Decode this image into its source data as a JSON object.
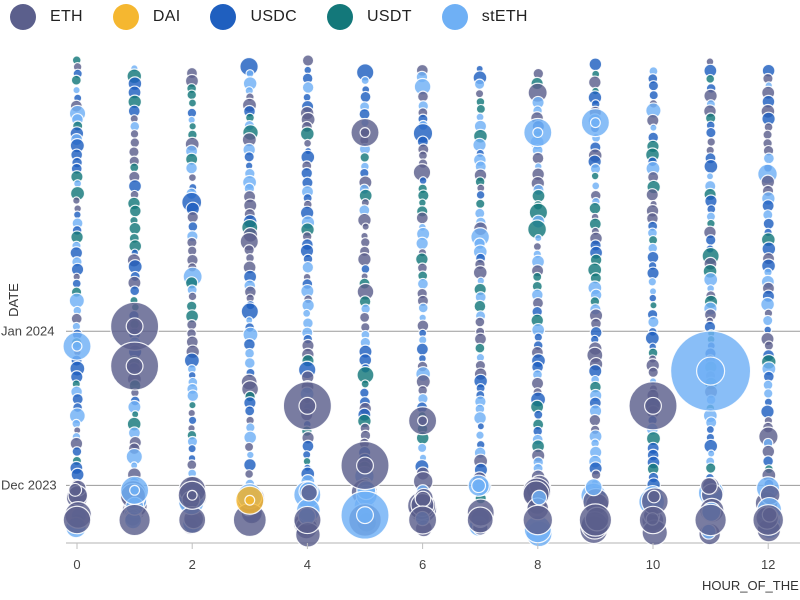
{
  "legend": [
    {
      "label": "ETH",
      "color": "#5b5f8c"
    },
    {
      "label": "DAI",
      "color": "#f5b730"
    },
    {
      "label": "USDC",
      "color": "#1f5fbf"
    },
    {
      "label": "USDT",
      "color": "#13787a"
    },
    {
      "label": "stETH",
      "color": "#6fb0f5"
    }
  ],
  "chart_data": {
    "type": "scatter",
    "subtype": "bubble",
    "xlabel": "HOUR_OF_THE",
    "ylabel": "DATE",
    "xlim": [
      -0.4,
      12.6
    ],
    "x_ticks": [
      0,
      2,
      4,
      6,
      8,
      10,
      12
    ],
    "y_ticks": [
      "Dec 2023",
      "Jan 2024"
    ],
    "ylim": [
      "2023-11-20",
      "2024-02-25"
    ],
    "grid": {
      "horizontal": true,
      "vertical": false
    },
    "legend_position": "top-left",
    "series_colors": {
      "ETH": "#5b5f8c",
      "DAI": "#f5b730",
      "USDC": "#1f5fbf",
      "USDT": "#13787a",
      "stETH": "#6fb0f5"
    },
    "notable_points": [
      {
        "x": 1,
        "date": "2024-01-02",
        "series": "ETH",
        "size": "large"
      },
      {
        "x": 1,
        "date": "2023-12-25",
        "series": "ETH",
        "size": "large"
      },
      {
        "x": 11,
        "date": "2023-12-24",
        "series": "stETH",
        "size": "very large"
      },
      {
        "x": 10,
        "date": "2023-12-17",
        "series": "ETH",
        "size": "large"
      },
      {
        "x": 4,
        "date": "2023-12-17",
        "series": "ETH",
        "size": "large"
      },
      {
        "x": 5,
        "date": "2023-12-05",
        "series": "ETH",
        "size": "large"
      },
      {
        "x": 5,
        "date": "2023-11-25",
        "series": "stETH",
        "size": "large"
      },
      {
        "x": 6,
        "date": "2023-12-14",
        "series": "ETH",
        "size": "medium"
      },
      {
        "x": 3,
        "date": "2023-11-28",
        "series": "DAI",
        "size": "medium"
      },
      {
        "x": 9,
        "date": "2024-02-12",
        "series": "stETH",
        "size": "medium"
      },
      {
        "x": 8,
        "date": "2024-02-10",
        "series": "stETH",
        "size": "medium"
      },
      {
        "x": 5,
        "date": "2024-02-10",
        "series": "ETH",
        "size": "medium"
      },
      {
        "x": 0,
        "date": "2023-12-29",
        "series": "stETH",
        "size": "medium"
      },
      {
        "x": 1,
        "date": "2023-11-30",
        "series": "stETH",
        "size": "medium"
      },
      {
        "x": 2,
        "date": "2023-11-29",
        "series": "ETH",
        "size": "medium"
      }
    ]
  }
}
